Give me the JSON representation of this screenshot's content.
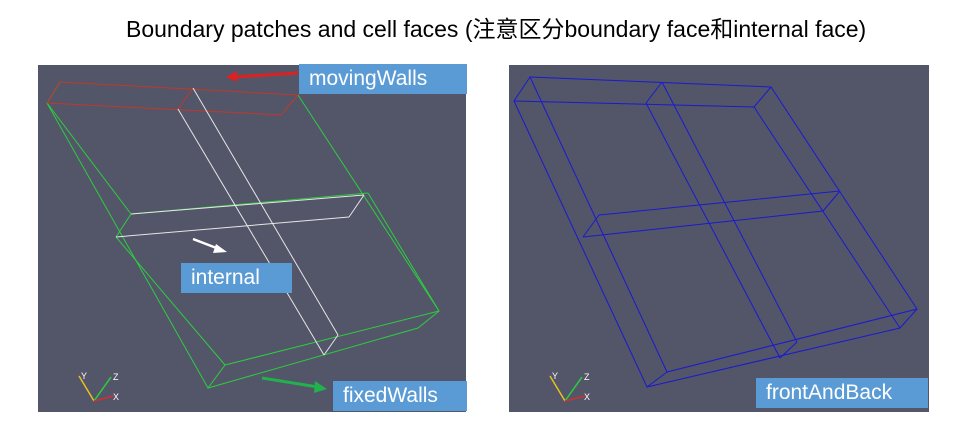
{
  "title": "Boundary patches and cell faces (注意区分boundary face和internal face)",
  "labels": {
    "moving_walls": "movingWalls",
    "internal": "internal",
    "fixed_walls": "fixedWalls",
    "front_and_back": "frontAndBack"
  },
  "axes_triad": {
    "y": "Y",
    "z": "Z",
    "x": "X"
  },
  "colors": {
    "viewport_background": "#535569",
    "label_background": "#5b9bd5",
    "moving_walls_edges": "#c0392b",
    "fixed_walls_edges": "#2ecc40",
    "internal_edges": "#e6e6e6",
    "front_and_back_edges": "#1a1ad0",
    "moving_arrow": "#e02020",
    "fixed_arrow": "#22b14c",
    "internal_arrow": "#ffffff"
  }
}
